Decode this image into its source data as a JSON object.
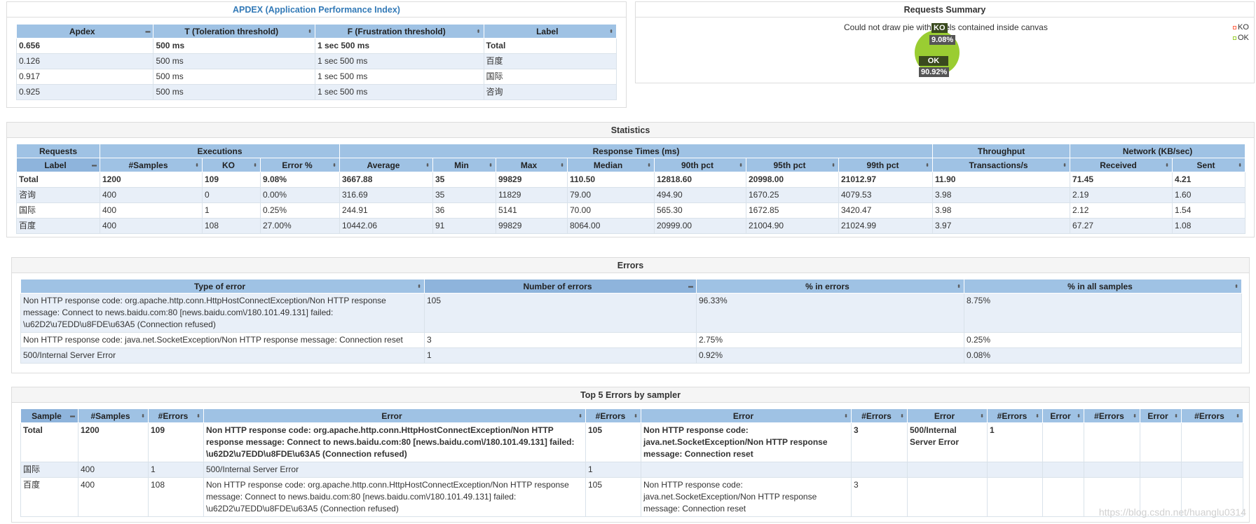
{
  "apdex": {
    "title": "APDEX (Application Performance Index)",
    "headers": [
      "Apdex",
      "T (Toleration threshold)",
      "F (Frustration threshold)",
      "Label"
    ],
    "rows": [
      [
        "0.656",
        "500 ms",
        "1 sec 500 ms",
        "Total"
      ],
      [
        "0.126",
        "500 ms",
        "1 sec 500 ms",
        "百度"
      ],
      [
        "0.917",
        "500 ms",
        "1 sec 500 ms",
        "国际"
      ],
      [
        "0.925",
        "500 ms",
        "1 sec 500 ms",
        "咨询"
      ]
    ]
  },
  "summary": {
    "title": "Requests Summary",
    "message": "Could not draw pie with labels contained inside canvas",
    "ko_label": "KO",
    "ko_pct": "9.08%",
    "ok_label": "OK",
    "ok_pct": "90.92%",
    "legend": [
      "KO",
      "OK"
    ],
    "colors": {
      "ok": "#9acd32",
      "ko": "#ff6347"
    }
  },
  "statistics": {
    "title": "Statistics",
    "groups": [
      "Requests",
      "Executions",
      "Response Times (ms)",
      "Throughput",
      "Network (KB/sec)"
    ],
    "headers": [
      "Label",
      "#Samples",
      "KO",
      "Error %",
      "Average",
      "Min",
      "Max",
      "Median",
      "90th pct",
      "95th pct",
      "99th pct",
      "Transactions/s",
      "Received",
      "Sent"
    ],
    "rows": [
      [
        "Total",
        "1200",
        "109",
        "9.08%",
        "3667.88",
        "35",
        "99829",
        "110.50",
        "12818.60",
        "20998.00",
        "21012.97",
        "11.90",
        "71.45",
        "4.21"
      ],
      [
        "咨询",
        "400",
        "0",
        "0.00%",
        "316.69",
        "35",
        "11829",
        "79.00",
        "494.90",
        "1670.25",
        "4079.53",
        "3.98",
        "2.19",
        "1.60"
      ],
      [
        "国际",
        "400",
        "1",
        "0.25%",
        "244.91",
        "36",
        "5141",
        "70.00",
        "565.30",
        "1672.85",
        "3420.47",
        "3.98",
        "2.12",
        "1.54"
      ],
      [
        "百度",
        "400",
        "108",
        "27.00%",
        "10442.06",
        "91",
        "99829",
        "8064.00",
        "20999.00",
        "21004.90",
        "21024.99",
        "3.97",
        "67.27",
        "1.08"
      ]
    ]
  },
  "errors": {
    "title": "Errors",
    "headers": [
      "Type of error",
      "Number of errors",
      "% in errors",
      "% in all samples"
    ],
    "rows": [
      [
        "Non HTTP response code: org.apache.http.conn.HttpHostConnectException/Non HTTP response message: Connect to news.baidu.com:80 [news.baidu.com\\/180.101.49.131] failed: \\u62D2\\u7EDD\\u8FDE\\u63A5 (Connection refused)",
        "105",
        "96.33%",
        "8.75%"
      ],
      [
        "Non HTTP response code: java.net.SocketException/Non HTTP response message: Connection reset",
        "3",
        "2.75%",
        "0.25%"
      ],
      [
        "500/Internal Server Error",
        "1",
        "0.92%",
        "0.08%"
      ]
    ]
  },
  "top5": {
    "title": "Top 5 Errors by sampler",
    "headers": [
      "Sample",
      "#Samples",
      "#Errors",
      "Error",
      "#Errors",
      "Error",
      "#Errors",
      "Error",
      "#Errors",
      "Error",
      "#Errors",
      "Error",
      "#Errors"
    ],
    "rows": [
      [
        "Total",
        "1200",
        "109",
        "Non HTTP response code: org.apache.http.conn.HttpHostConnectException/Non HTTP response message: Connect to news.baidu.com:80 [news.baidu.com\\/180.101.49.131] failed: \\u62D2\\u7EDD\\u8FDE\\u63A5 (Connection refused)",
        "105",
        "Non HTTP response code: java.net.SocketException/Non HTTP response message: Connection reset",
        "3",
        "500/Internal Server Error",
        "1",
        "",
        "",
        "",
        ""
      ],
      [
        "国际",
        "400",
        "1",
        "500/Internal Server Error",
        "1",
        "",
        "",
        "",
        "",
        "",
        "",
        "",
        ""
      ],
      [
        "百度",
        "400",
        "108",
        "Non HTTP response code: org.apache.http.conn.HttpHostConnectException/Non HTTP response message: Connect to news.baidu.com:80 [news.baidu.com\\/180.101.49.131] failed: \\u62D2\\u7EDD\\u8FDE\\u63A5 (Connection refused)",
        "105",
        "Non HTTP response code: java.net.SocketException/Non HTTP response message: Connection reset",
        "3",
        "",
        "",
        "",
        "",
        "",
        ""
      ]
    ]
  },
  "watermark": "https://blog.csdn.net/huanglu0314"
}
